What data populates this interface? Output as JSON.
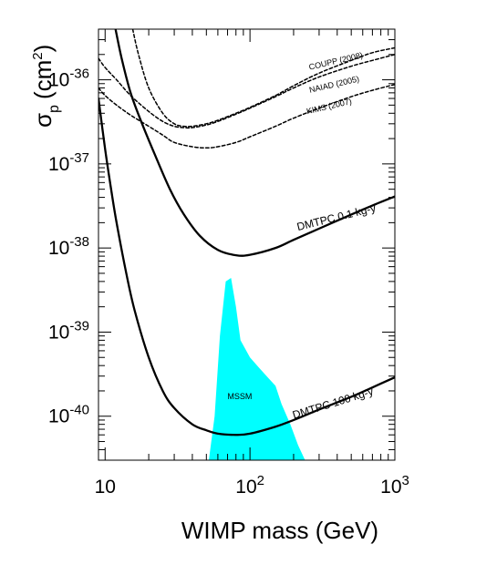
{
  "chart_data": {
    "type": "line",
    "xlabel": "WIMP mass (GeV)",
    "ylabel_main": "σ",
    "ylabel_sub": "p",
    "ylabel_unit": "(cm",
    "ylabel_unit_exp": "2",
    "ylabel_close": ")",
    "x_scale": "log",
    "y_scale": "log",
    "xlim": [
      9,
      1000
    ],
    "ylim": [
      3e-41,
      4e-36
    ],
    "x_ticks": [
      {
        "value": 10,
        "base": "10",
        "exp": ""
      },
      {
        "value": 100,
        "base": "10",
        "exp": "2"
      },
      {
        "value": 1000,
        "base": "10",
        "exp": "3"
      }
    ],
    "y_ticks": [
      {
        "value": 1e-40,
        "base": "10",
        "exp": "-40"
      },
      {
        "value": 1e-39,
        "base": "10",
        "exp": "-39"
      },
      {
        "value": 1e-38,
        "base": "10",
        "exp": "-38"
      },
      {
        "value": 1e-37,
        "base": "10",
        "exp": "-37"
      },
      {
        "value": 1e-36,
        "base": "10",
        "exp": "-36"
      }
    ],
    "series": [
      {
        "name": "DMTPC 0.1 kg-y",
        "style": "solid",
        "x": [
          11.8,
          13,
          15,
          18,
          22,
          28,
          35,
          45,
          60,
          80,
          100,
          150,
          200,
          300,
          500,
          700,
          1000
        ],
        "y": [
          4e-36,
          1.8e-36,
          7e-37,
          3e-37,
          1.3e-37,
          5e-38,
          2.5e-38,
          1.4e-38,
          9.5e-39,
          8.2e-39,
          8.3e-39,
          1e-38,
          1.25e-38,
          1.7e-38,
          2.5e-38,
          3.2e-38,
          4.1e-38
        ]
      },
      {
        "name": "DMTPC 100 kg-y",
        "style": "solid",
        "x": [
          9,
          10,
          11,
          12,
          14,
          16,
          20,
          25,
          30,
          40,
          50,
          60,
          80,
          100,
          150,
          200,
          300,
          500,
          700,
          1000
        ],
        "y": [
          6e-37,
          1.5e-37,
          5e-38,
          2e-38,
          5e-39,
          1.8e-39,
          5e-40,
          2e-40,
          1.25e-40,
          8e-41,
          6.8e-41,
          6.2e-41,
          6e-41,
          6.2e-41,
          7.5e-41,
          9e-41,
          1.2e-40,
          1.7e-40,
          2.2e-40,
          2.9e-40
        ]
      },
      {
        "name": "COUPP (2008)",
        "style": "dashed",
        "x": [
          15.5,
          17,
          20,
          25,
          30,
          35,
          40,
          50,
          60,
          80,
          100,
          150,
          200,
          300,
          500,
          700,
          1000
        ],
        "y": [
          4e-36,
          2e-36,
          8e-37,
          4e-37,
          3e-37,
          2.8e-37,
          2.8e-37,
          3e-37,
          3.3e-37,
          4e-37,
          4.7e-37,
          6.5e-37,
          8.5e-37,
          1.2e-36,
          1.7e-36,
          2.1e-36,
          2.4e-36
        ]
      },
      {
        "name": "NAIAD (2005)",
        "style": "dashed",
        "x": [
          9,
          10,
          12,
          15,
          20,
          25,
          30,
          35,
          40,
          50,
          60,
          80,
          100,
          150,
          200,
          300,
          500,
          700,
          1000
        ],
        "y": [
          1.8e-36,
          1.4e-36,
          1e-36,
          6.5e-37,
          4.2e-37,
          3.2e-37,
          2.8e-37,
          2.7e-37,
          2.7e-37,
          2.9e-37,
          3.2e-37,
          3.9e-37,
          4.6e-37,
          6.3e-37,
          8e-37,
          1.08e-36,
          1.45e-36,
          1.7e-36,
          2e-36
        ]
      },
      {
        "name": "KIMS (2007)",
        "style": "dashed",
        "x": [
          9,
          10,
          12,
          15,
          20,
          25,
          30,
          40,
          50,
          60,
          80,
          100,
          150,
          200,
          300,
          500,
          700,
          1000
        ],
        "y": [
          8e-37,
          6.5e-37,
          5e-37,
          3.8e-37,
          2.8e-37,
          2.2e-37,
          1.8e-37,
          1.6e-37,
          1.55e-37,
          1.6e-37,
          1.8e-37,
          2.1e-37,
          2.8e-37,
          3.5e-37,
          4.6e-37,
          6.3e-37,
          7.5e-37,
          8.8e-37
        ]
      }
    ],
    "regions": [
      {
        "name": "MSSM",
        "color": "#00ffff",
        "x": [
          52,
          57,
          62,
          68,
          74,
          80,
          86,
          100,
          115,
          135,
          150,
          165,
          190,
          215,
          240,
          52
        ],
        "y": [
          3e-41,
          1e-40,
          9e-40,
          4e-39,
          4.4e-39,
          2e-39,
          8e-40,
          5e-40,
          3.8e-40,
          2.8e-40,
          2.3e-40,
          1.4e-40,
          8e-41,
          4.5e-41,
          3e-41,
          3e-41
        ]
      }
    ],
    "annotations": [
      {
        "text": "DMTPC 0.1 kg-y",
        "x": 400,
        "y": 2.1e-38,
        "angle": -14,
        "size": 12
      },
      {
        "text": "DMTPC 100 kg-y",
        "x": 380,
        "y": 1.3e-40,
        "angle": -17,
        "size": 12
      },
      {
        "text": "COUPP (2008)",
        "x": 395,
        "y": 1.55e-36,
        "angle": -13,
        "size": 9
      },
      {
        "text": "NAIAD (2005)",
        "x": 385,
        "y": 8.2e-37,
        "angle": -13,
        "size": 9
      },
      {
        "text": "KIMS (2007)",
        "x": 355,
        "y": 4.5e-37,
        "angle": -13,
        "size": 9
      },
      {
        "text": "MSSM",
        "x": 85,
        "y": 1.6e-40,
        "angle": 0,
        "size": 9
      }
    ],
    "grid": false,
    "colors": {
      "curve": "#000000",
      "region": "#00ffff"
    }
  }
}
